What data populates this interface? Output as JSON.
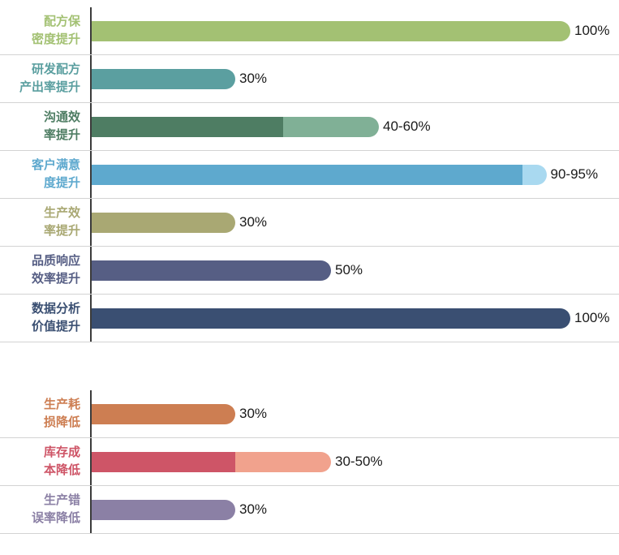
{
  "colors": {
    "background": "#ffffff",
    "axis": "#3b3b3b",
    "separator": "#d3d3d3",
    "value_text": "#1a1a1a"
  },
  "chart_data": [
    {
      "type": "bar",
      "orientation": "horizontal",
      "group": "improvements",
      "unit": "%",
      "xlim": [
        0,
        100
      ],
      "grid": "row-separators-only",
      "legend": "none",
      "categories": [
        "配方保密度提升",
        "研发配方产出率提升",
        "沟通效率提升",
        "客户满意度提升",
        "生产效率提升",
        "品质响应效率提升",
        "数据分析价值提升"
      ],
      "values_min": [
        100,
        30,
        40,
        90,
        30,
        50,
        100
      ],
      "values_max": [
        100,
        30,
        60,
        95,
        30,
        50,
        100
      ],
      "rows": [
        {
          "label": "配方保\n密度提升",
          "value_label": "100%",
          "value_min": 100,
          "value_max": 100,
          "color": "#a3c173",
          "color_light": null
        },
        {
          "label": "研发配方\n产出率提升",
          "value_label": "30%",
          "value_min": 30,
          "value_max": 30,
          "color": "#5b9fa0",
          "color_light": null
        },
        {
          "label": "沟通效\n率提升",
          "value_label": "40-60%",
          "value_min": 40,
          "value_max": 60,
          "color": "#4e7d63",
          "color_light": "#80b096"
        },
        {
          "label": "客户满意\n度提升",
          "value_label": "90-95%",
          "value_min": 90,
          "value_max": 95,
          "color": "#5ea9ce",
          "color_light": "#a9d9f0"
        },
        {
          "label": "生产效\n率提升",
          "value_label": "30%",
          "value_min": 30,
          "value_max": 30,
          "color": "#a9a873",
          "color_light": null
        },
        {
          "label": "品质响应\n效率提升",
          "value_label": "50%",
          "value_min": 50,
          "value_max": 50,
          "color": "#565e84",
          "color_light": null
        },
        {
          "label": "数据分析\n价值提升",
          "value_label": "100%",
          "value_min": 100,
          "value_max": 100,
          "color": "#3a4f72",
          "color_light": null
        }
      ]
    },
    {
      "type": "bar",
      "orientation": "horizontal",
      "group": "reductions",
      "unit": "%",
      "xlim": [
        0,
        100
      ],
      "grid": "row-separators-only",
      "legend": "none",
      "categories": [
        "生产耗损降低",
        "库存成本降低",
        "生产错误率降低"
      ],
      "values_min": [
        30,
        30,
        30
      ],
      "values_max": [
        30,
        50,
        30
      ],
      "rows": [
        {
          "label": "生产耗\n损降低",
          "value_label": "30%",
          "value_min": 30,
          "value_max": 30,
          "color": "#cd7e52",
          "color_light": null
        },
        {
          "label": "库存成\n本降低",
          "value_label": "30-50%",
          "value_min": 30,
          "value_max": 50,
          "color": "#ce5567",
          "color_light": "#f1a28d"
        },
        {
          "label": "生产错\n误率降低",
          "value_label": "30%",
          "value_min": 30,
          "value_max": 30,
          "color": "#8b80a5",
          "color_light": null
        }
      ]
    }
  ]
}
